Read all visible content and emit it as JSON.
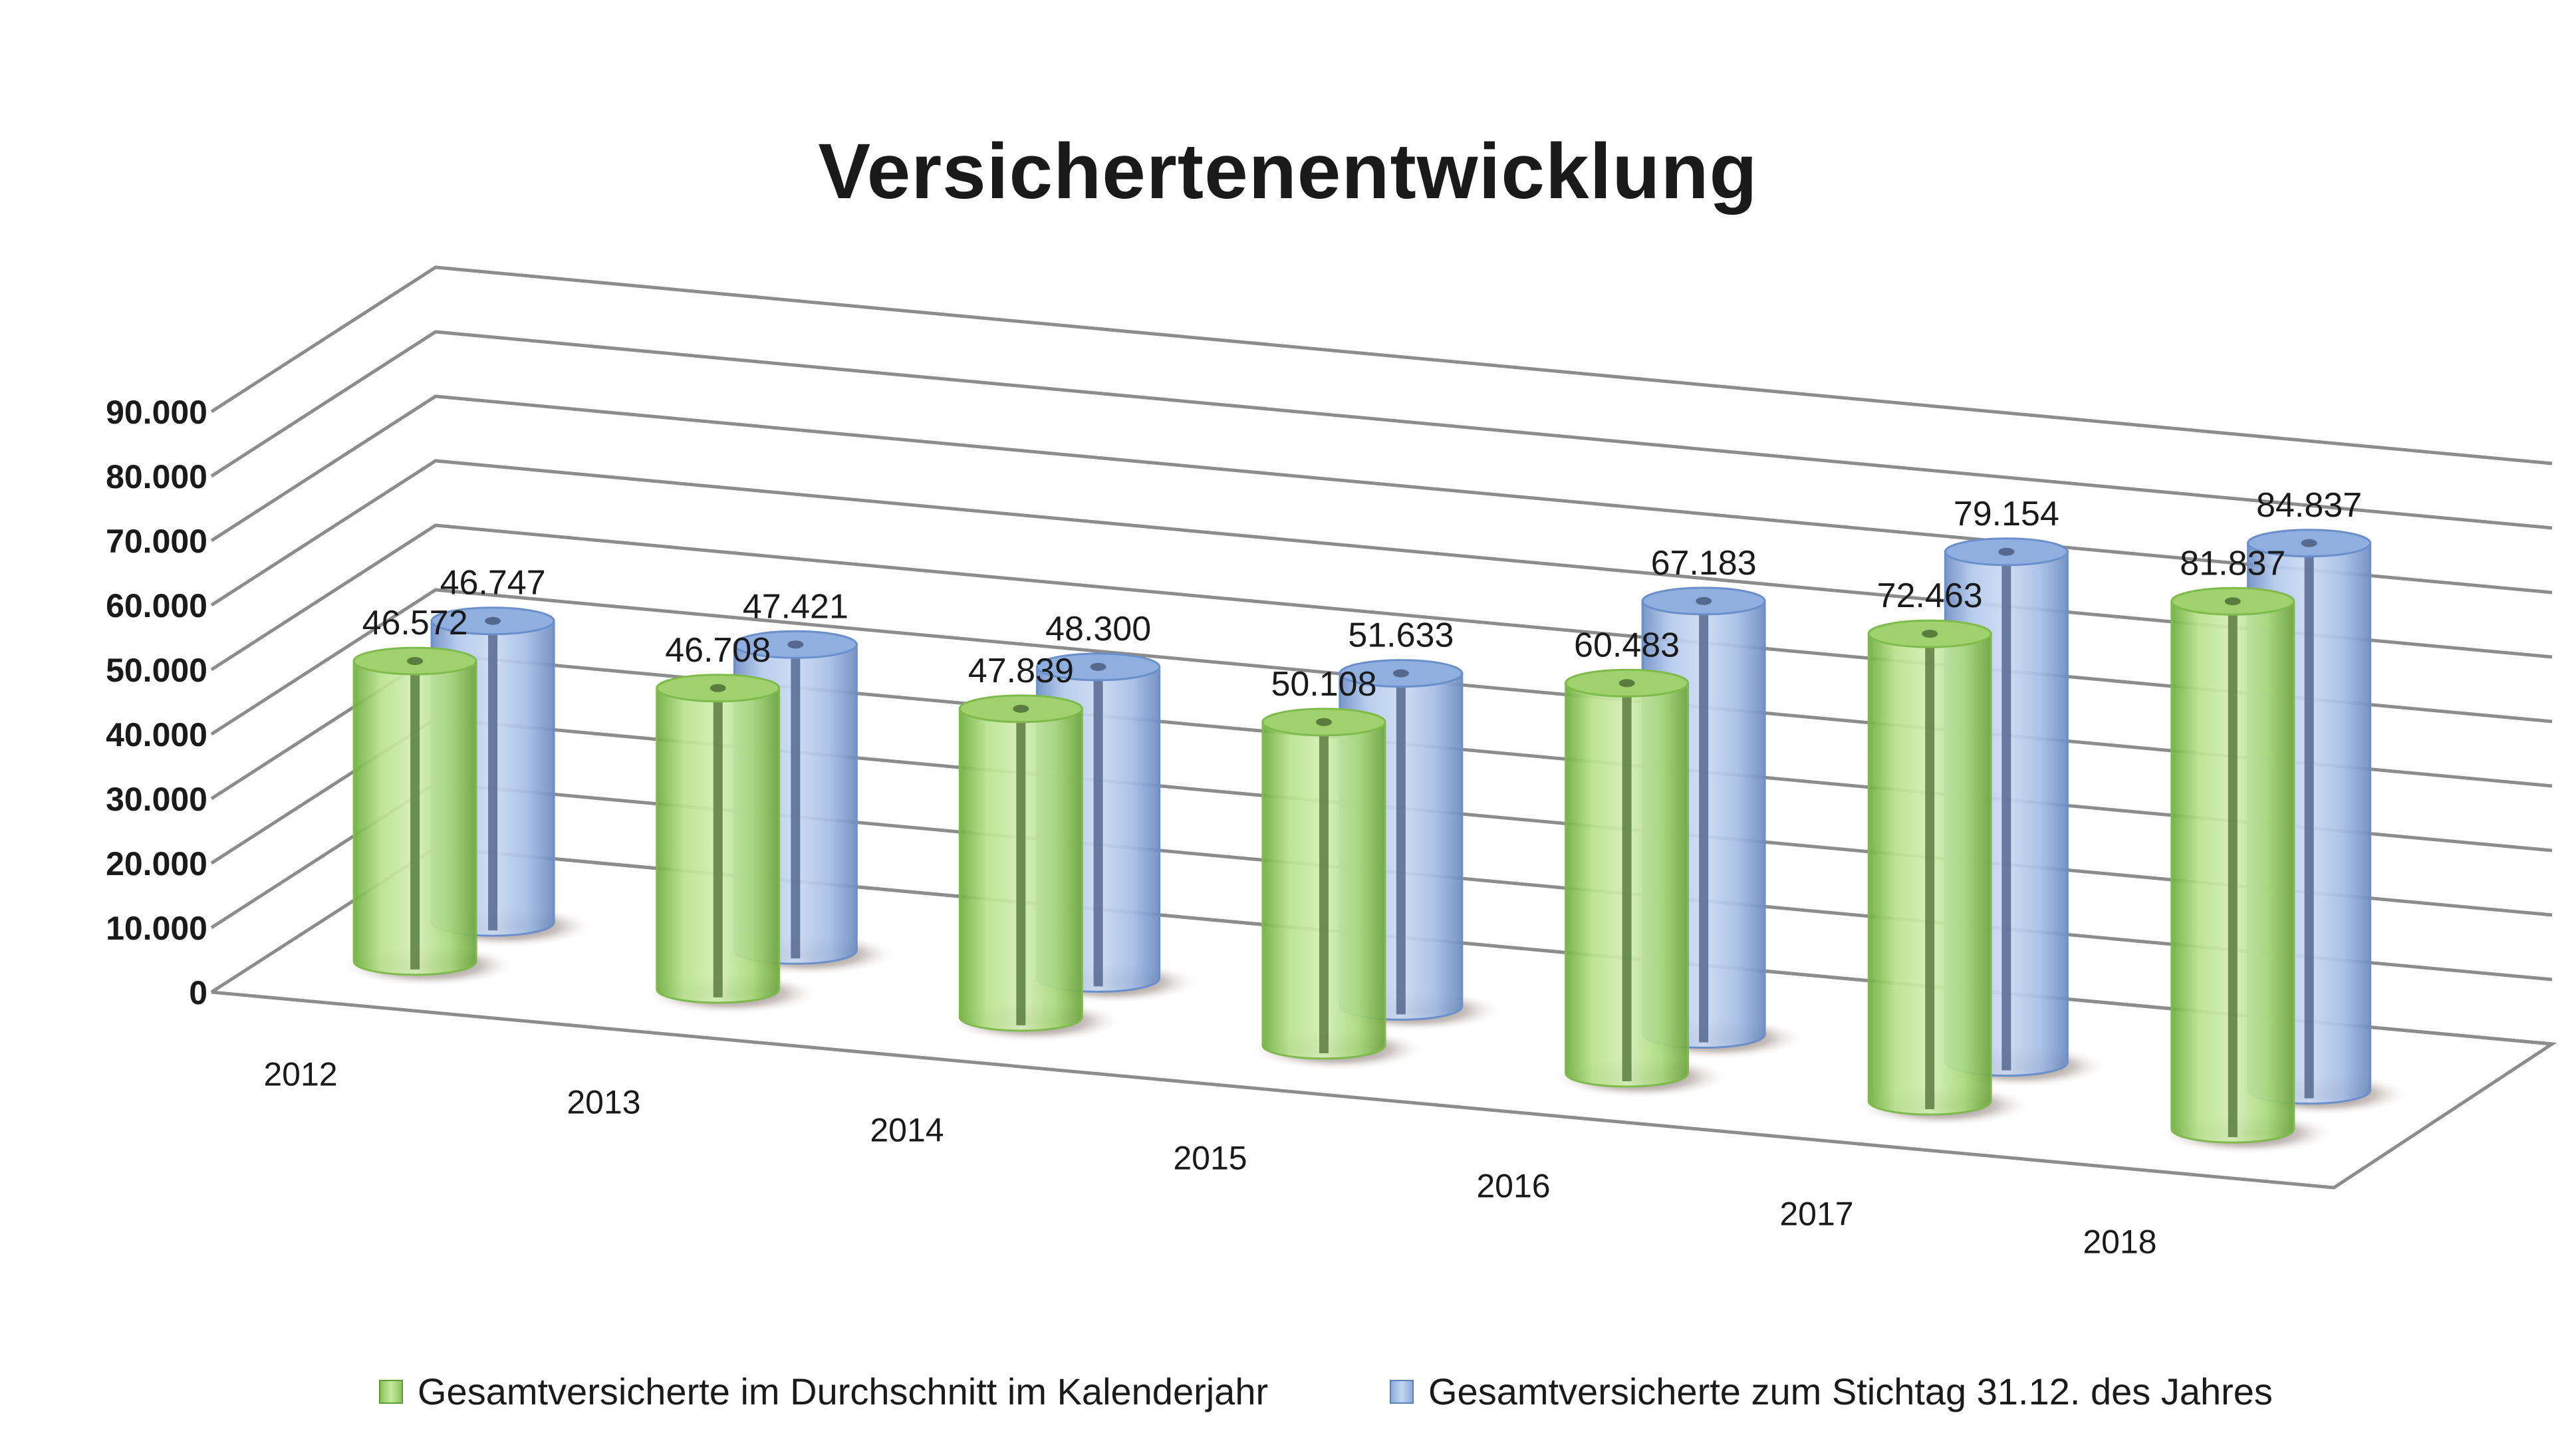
{
  "chart_data": {
    "type": "bar",
    "title": "Versichertenentwicklung",
    "categories": [
      "2012",
      "2013",
      "2014",
      "2015",
      "2016",
      "2017",
      "2018"
    ],
    "series": [
      {
        "name": "Gesamtversicherte im Durchschnitt im Kalenderjahr",
        "values": [
          46572,
          46708,
          47839,
          50108,
          60483,
          72463,
          81837
        ],
        "labels": [
          "46.572",
          "46.708",
          "47.839",
          "50.108",
          "60.483",
          "72.463",
          "81.837"
        ],
        "color": "#9bcf6c"
      },
      {
        "name": "Gesamtversicherte zum Stichtag 31.12. des Jahres",
        "values": [
          46747,
          47421,
          48300,
          51633,
          67183,
          79154,
          84837
        ],
        "labels": [
          "46.747",
          "47.421",
          "48.300",
          "51.633",
          "67.183",
          "79.154",
          "84.837"
        ],
        "color": "#9bb7e0"
      }
    ],
    "ylim": [
      0,
      90000
    ],
    "yticks": [
      0,
      10000,
      20000,
      30000,
      40000,
      50000,
      60000,
      70000,
      80000,
      90000
    ],
    "ytick_labels": [
      "0",
      "10.000",
      "20.000",
      "30.000",
      "40.000",
      "50.000",
      "60.000",
      "70.000",
      "80.000",
      "90.000"
    ],
    "grid": true,
    "style": "3d-cylinder",
    "legend_position": "bottom"
  }
}
